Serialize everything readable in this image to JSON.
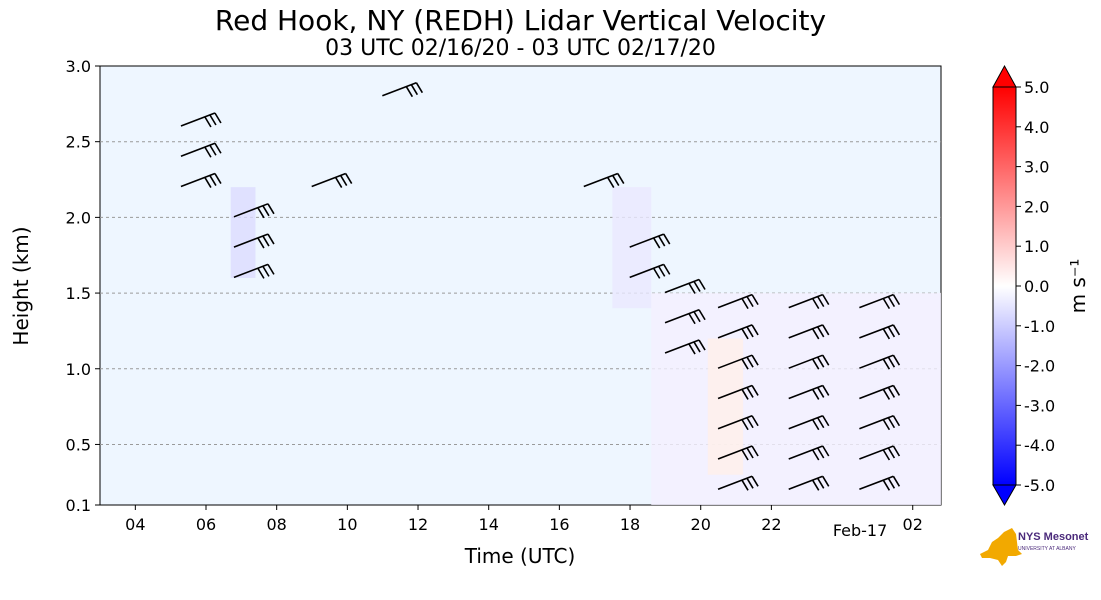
{
  "chart_data": {
    "type": "heatmap",
    "title": "Red Hook, NY (REDH) Lidar Vertical Velocity",
    "subtitle": "03 UTC 02/16/20 - 03 UTC 02/17/20",
    "xlabel": "Time (UTC)",
    "ylabel": "Height (km)",
    "x_ticks": [
      "04",
      "06",
      "08",
      "10",
      "12",
      "14",
      "16",
      "18",
      "20",
      "22",
      "02"
    ],
    "x_tick_hours": [
      4,
      6,
      8,
      10,
      12,
      14,
      16,
      18,
      20,
      22,
      26
    ],
    "x_date_label": "Feb-17",
    "x_date_hour": 24,
    "xlim": [
      3,
      26.8
    ],
    "y_ticks": [
      "0.1",
      "0.5",
      "1.0",
      "1.5",
      "2.0",
      "2.5",
      "3.0"
    ],
    "y_tick_values": [
      0.1,
      0.5,
      1.0,
      1.5,
      2.0,
      2.5,
      3.0
    ],
    "ylim": [
      0.1,
      3.0
    ],
    "grid": "horizontal dashed",
    "background_color": "#eef6ff",
    "colorbar": {
      "label": "m s⁻¹",
      "ticks": [
        "5.0",
        "4.0",
        "3.0",
        "2.0",
        "1.0",
        "0.0",
        "-1.0",
        "-2.0",
        "-3.0",
        "-4.0",
        "-5.0"
      ],
      "range": [
        -5.0,
        5.0
      ],
      "colors": {
        "min": "#0000ff",
        "mid": "#ffffff",
        "max": "#ff0000"
      }
    },
    "wind_barb_rows": [
      {
        "hour": 5.8,
        "heights": [
          2.65,
          2.45,
          2.25
        ]
      },
      {
        "hour": 7.3,
        "heights": [
          2.05,
          1.85,
          1.65
        ]
      },
      {
        "hour": 9.5,
        "heights": [
          2.25
        ]
      },
      {
        "hour": 11.5,
        "heights": [
          2.85
        ]
      },
      {
        "hour": 17.2,
        "heights": [
          2.25
        ]
      },
      {
        "hour": 18.5,
        "heights": [
          1.85,
          1.65
        ]
      },
      {
        "hour": 19.5,
        "heights": [
          1.55,
          1.35,
          1.15
        ]
      },
      {
        "hour": 21.0,
        "heights": [
          1.45,
          1.25,
          1.05,
          0.85,
          0.65,
          0.45,
          0.25
        ]
      },
      {
        "hour": 23.0,
        "heights": [
          1.45,
          1.25,
          1.05,
          0.85,
          0.65,
          0.45,
          0.25
        ]
      },
      {
        "hour": 25.0,
        "heights": [
          1.45,
          1.25,
          1.05,
          0.85,
          0.65,
          0.45,
          0.25
        ]
      }
    ]
  },
  "logo": {
    "name": "NYS Mesonet",
    "subtitle": "UNIVERSITY AT ALBANY",
    "color": "#f2a900"
  }
}
